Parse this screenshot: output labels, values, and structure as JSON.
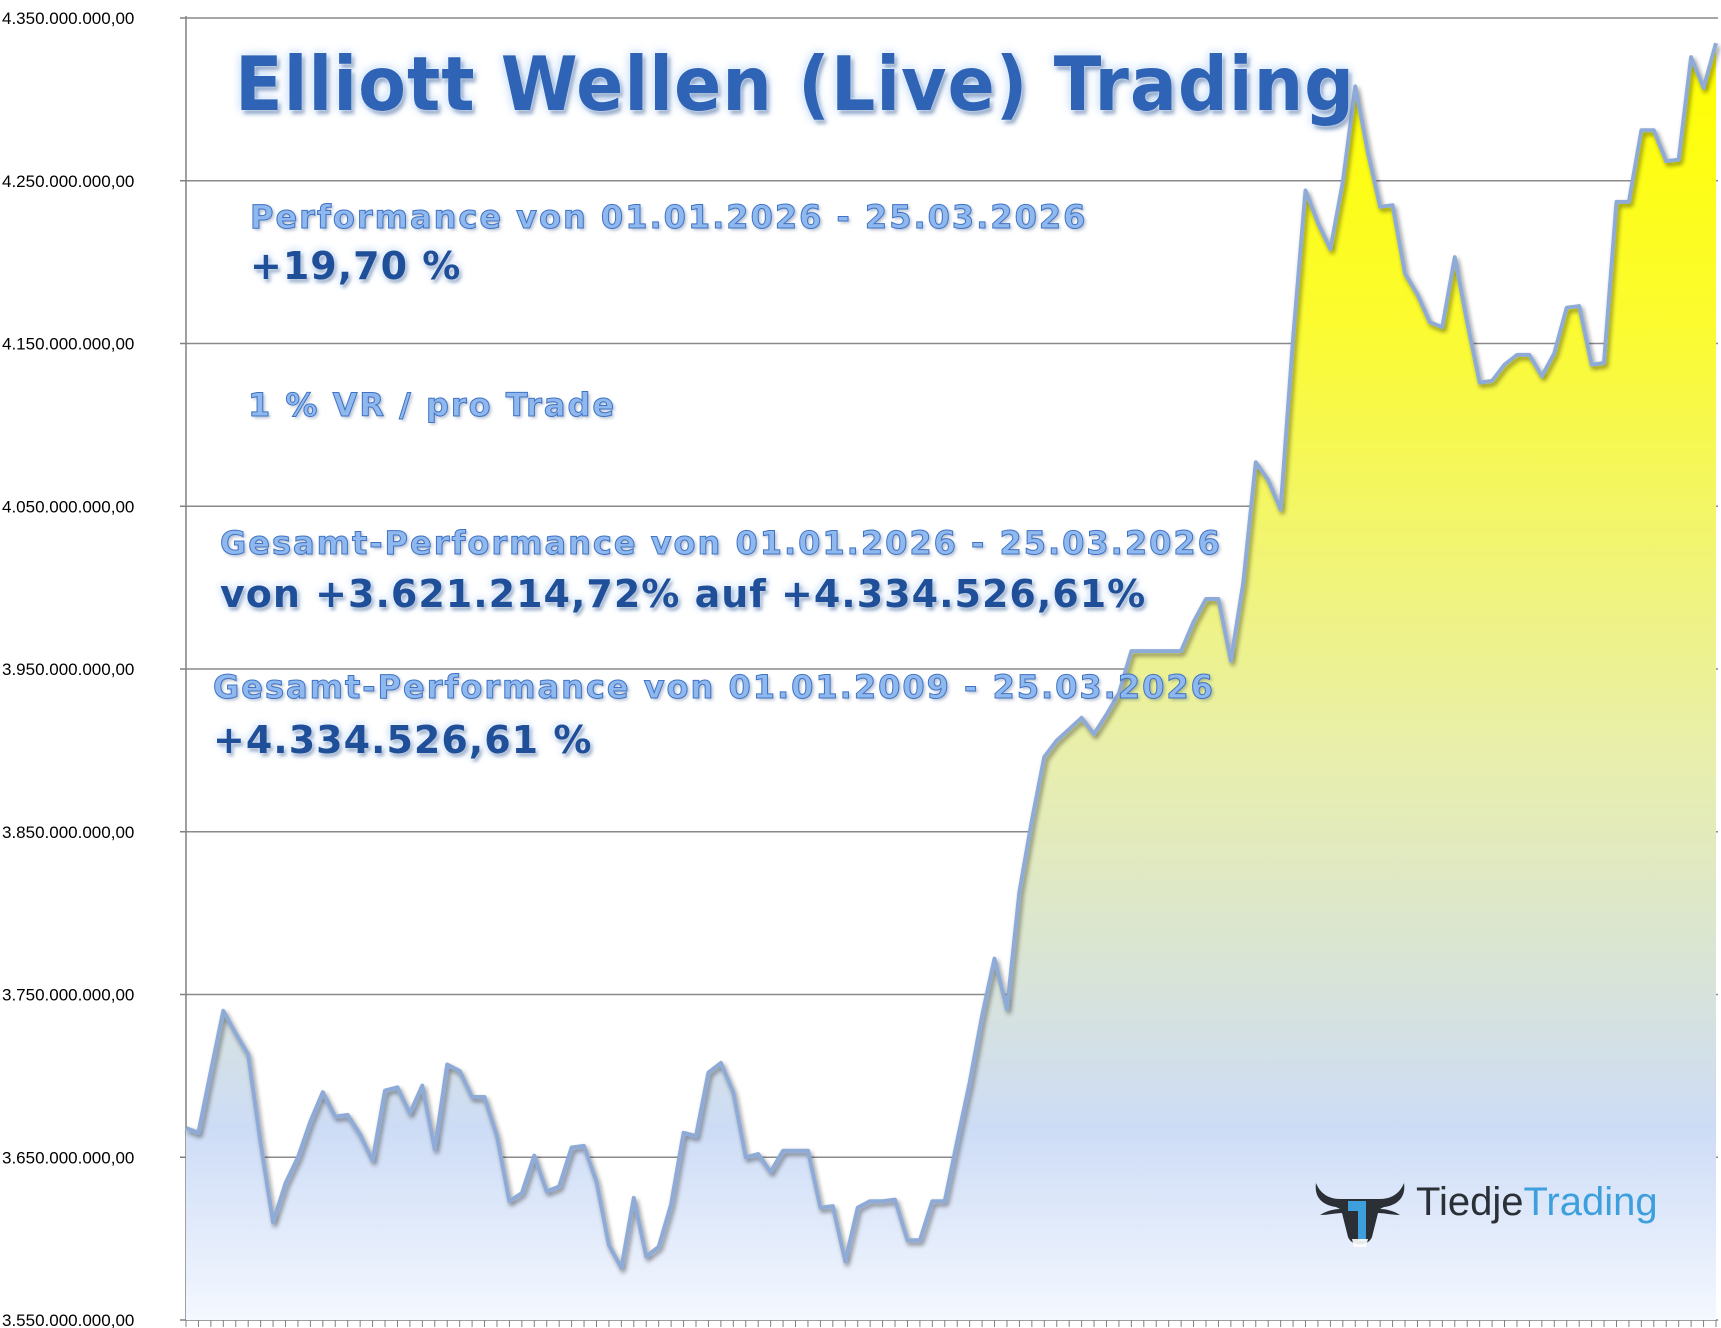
{
  "title": "Elliott Wellen (Live) Trading",
  "performance": {
    "label": "Performance  von  01.01.2026 - 25.03.2026",
    "value": "+19,70 %"
  },
  "risk_note": "1 % VR / pro Trade",
  "total_performance_period": {
    "label": "Gesamt-Performance  von  01.01.2026 - 25.03.2026",
    "value": "von +3.621.214,72% auf  +4.334.526,61%"
  },
  "total_performance_all": {
    "label": "Gesamt-Performance  von  01.01.2009 - 25.03.2026",
    "value": "+4.334.526,61 %"
  },
  "logo": {
    "part1": "Tiedje",
    "part2": "Trading",
    "icon": "bull-head-icon"
  },
  "colors": {
    "fill_top": "#ffff00",
    "fill_mid": "#eef4a0",
    "fill_bottom": "#ffffff",
    "line": "#8eaad6",
    "grid": "#808080",
    "title": "#2f63b6"
  },
  "chart_data": {
    "type": "area",
    "title": "",
    "xlabel": "",
    "ylabel": "",
    "ylim": [
      3550000000,
      4350000000
    ],
    "yticks": [
      3550000000,
      3650000000,
      3750000000,
      3850000000,
      3950000000,
      4050000000,
      4150000000,
      4250000000,
      4350000000
    ],
    "ytick_labels": [
      "3.550.000.000,00",
      "3.650.000.000,00",
      "3.750.000.000,00",
      "3.850.000.000,00",
      "3.950.000.000,00",
      "4.050.000.000,00",
      "4.150.000.000,00",
      "4.250.000.000,00",
      "4.350.000.000,00"
    ],
    "grid": true,
    "legend": "none",
    "values": [
      3668000000,
      3665000000,
      3703000000,
      3740000000,
      3726000000,
      3713000000,
      3659000000,
      3610000000,
      3634000000,
      3650000000,
      3672000000,
      3690000000,
      3675000000,
      3676000000,
      3664000000,
      3648000000,
      3691000000,
      3693000000,
      3677000000,
      3694000000,
      3655000000,
      3707000000,
      3703000000,
      3687000000,
      3687000000,
      3663000000,
      3623000000,
      3628000000,
      3651000000,
      3629000000,
      3632000000,
      3656000000,
      3657000000,
      3635000000,
      3596000000,
      3582000000,
      3625000000,
      3589000000,
      3595000000,
      3621000000,
      3665000000,
      3663000000,
      3702000000,
      3708000000,
      3690000000,
      3650000000,
      3652000000,
      3641000000,
      3654000000,
      3654000000,
      3654000000,
      3619000000,
      3620000000,
      3586000000,
      3619000000,
      3623000000,
      3623000000,
      3624000000,
      3599000000,
      3599000000,
      3623000000,
      3623000000,
      3660000000,
      3696000000,
      3737000000,
      3772000000,
      3741000000,
      3813000000,
      3857000000,
      3896000000,
      3906000000,
      3913000000,
      3920000000,
      3910000000,
      3922000000,
      3935000000,
      3961000000,
      3961000000,
      3961000000,
      3961000000,
      3961000000,
      3979000000,
      3993000000,
      3993000000,
      3955000000,
      4003000000,
      4077000000,
      4066000000,
      4048000000,
      4153000000,
      4244000000,
      4224000000,
      4208000000,
      4249000000,
      4308000000,
      4268000000,
      4234000000,
      4235000000,
      4193000000,
      4180000000,
      4163000000,
      4160000000,
      4203000000,
      4163000000,
      4126000000,
      4127000000,
      4137000000,
      4143000000,
      4143000000,
      4130000000,
      4144000000,
      4172000000,
      4173000000,
      4137000000,
      4138000000,
      4237000000,
      4237000000,
      4281000000,
      4281000000,
      4262000000,
      4263000000,
      4326000000,
      4307000000,
      4334500000
    ]
  }
}
